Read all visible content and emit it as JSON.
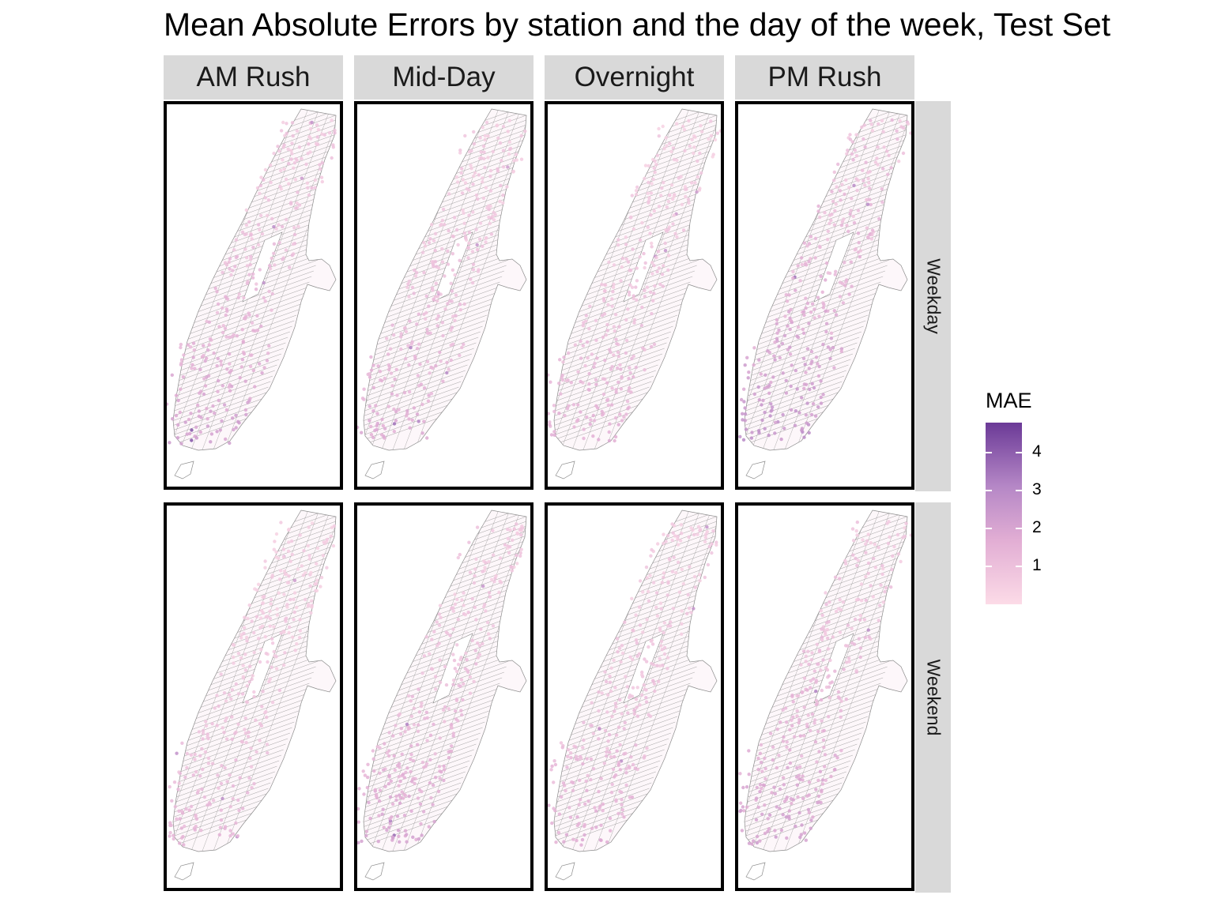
{
  "title": "Mean Absolute Errors by station and the day of the week, Test Set",
  "columns": [
    "AM Rush",
    "Mid-Day",
    "Overnight",
    "PM Rush"
  ],
  "rows": [
    "Weekday",
    "Weekend"
  ],
  "legend": {
    "title": "MAE",
    "min": 0,
    "max": 4.8,
    "ticks": [
      "1",
      "2",
      "3",
      "4"
    ],
    "tick_values": [
      1,
      2,
      3,
      4
    ],
    "colors": {
      "low": "#fcdbe7",
      "mid": "#e2aed4",
      "high": "#6b3a97"
    }
  },
  "colors": {
    "strip": "#d9d9d9",
    "panel_border": "#000000",
    "tract_line": "#8c8c8c"
  },
  "panel_intensity": {
    "Weekday": {
      "AM Rush": 0.55,
      "Mid-Day": 0.45,
      "Overnight": 0.4,
      "PM Rush": 0.7
    },
    "Weekend": {
      "AM Rush": 0.35,
      "Mid-Day": 0.5,
      "Overnight": 0.42,
      "PM Rush": 0.55
    }
  }
}
